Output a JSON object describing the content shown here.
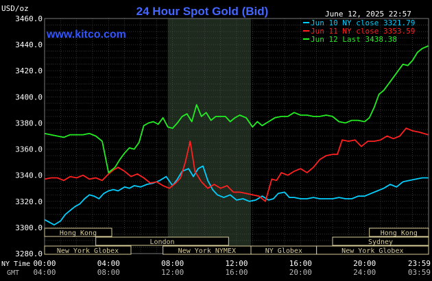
{
  "chart_data": {
    "type": "line",
    "title": "24 Hour Spot Gold (Bid)",
    "website": "www.kitco.com",
    "timestamp": "June 12, 2025 22:57",
    "ylabel": "USD/oz",
    "ylim": [
      3280,
      3460
    ],
    "yticks": [
      "3460.0",
      "3440.0",
      "3420.0",
      "3400.0",
      "3380.0",
      "3360.0",
      "3340.0",
      "3320.0",
      "3300.0",
      "3280.0"
    ],
    "xlim": [
      0,
      24
    ],
    "xtick_hours": [
      0,
      4,
      8,
      12,
      16,
      20,
      24
    ],
    "xticks_ny": [
      "00:00",
      "04:00",
      "08:00",
      "12:00",
      "16:00",
      "20:00",
      "23:59"
    ],
    "xticks_gmt": [
      "04:00",
      "08:00",
      "12:00",
      "16:00",
      "20:00",
      "24:00",
      "03:59"
    ],
    "xrow_label_ny": "NY Time",
    "xrow_label_gmt": "GMT",
    "grid": true,
    "legend_position": "top-right",
    "highlight_band_hours": [
      7.7,
      12.9
    ],
    "colors": {
      "background": "#000000",
      "grid": "#555555",
      "axis_text": "#ffffff",
      "title": "#4466ff",
      "website": "#3355ff",
      "session_box_fill": "#000000",
      "session_box_border": "#d8cc99",
      "session_text": "#d8cc99",
      "band": "#1f2a1f"
    },
    "series": [
      {
        "name": "Jun 10 NY close 3321.79",
        "color": "#00cfff",
        "x": [
          0,
          0.3,
          0.6,
          1.0,
          1.3,
          1.6,
          1.9,
          2.2,
          2.5,
          2.8,
          3.1,
          3.4,
          3.7,
          4.0,
          4.3,
          4.6,
          5.0,
          5.3,
          5.6,
          6.0,
          6.4,
          6.8,
          7.2,
          7.6,
          8.0,
          8.3,
          8.6,
          9.0,
          9.3,
          9.6,
          9.9,
          10.2,
          10.5,
          10.8,
          11.2,
          11.6,
          12.0,
          12.4,
          12.8,
          13.2,
          13.6,
          14.0,
          14.3,
          14.6,
          15.0,
          15.3,
          15.6,
          16.0,
          16.4,
          16.8,
          17.2,
          17.6,
          18.0,
          18.4,
          18.8,
          19.2,
          19.6,
          20.0,
          20.4,
          20.8,
          21.2,
          21.6,
          22.0,
          22.4,
          22.8,
          23.2,
          23.6,
          23.98
        ],
        "values": [
          3306,
          3304,
          3302,
          3305,
          3310,
          3313,
          3316,
          3318,
          3322,
          3325,
          3324,
          3322,
          3326,
          3328,
          3329,
          3328,
          3331,
          3330,
          3332,
          3331,
          3333,
          3334,
          3336,
          3339,
          3332,
          3337,
          3343,
          3345,
          3339,
          3345,
          3347,
          3336,
          3329,
          3325,
          3323,
          3325,
          3321,
          3322,
          3320,
          3321,
          3324,
          3321,
          3322,
          3326,
          3327,
          3323,
          3323,
          3322,
          3322,
          3323,
          3322,
          3322,
          3322,
          3323,
          3322,
          3322,
          3324,
          3324,
          3326,
          3328,
          3330,
          3333,
          3331,
          3335,
          3336,
          3337,
          3338,
          3338
        ]
      },
      {
        "name": "Jun 11 NY close 3353.59",
        "color": "#ff2020",
        "x": [
          0,
          0.4,
          0.8,
          1.2,
          1.6,
          2.0,
          2.4,
          2.8,
          3.2,
          3.6,
          4.0,
          4.3,
          4.6,
          5.0,
          5.4,
          5.8,
          6.2,
          6.6,
          7.0,
          7.4,
          7.8,
          8.2,
          8.5,
          8.8,
          9.1,
          9.4,
          9.8,
          10.2,
          10.6,
          11.0,
          11.4,
          11.8,
          12.2,
          12.6,
          13.0,
          13.4,
          13.8,
          14.2,
          14.5,
          14.8,
          15.2,
          15.6,
          16.0,
          16.4,
          16.8,
          17.2,
          17.6,
          18.0,
          18.3,
          18.6,
          19.0,
          19.4,
          19.8,
          20.2,
          20.6,
          21.0,
          21.4,
          21.8,
          22.2,
          22.6,
          23.0,
          23.4,
          23.98
        ],
        "values": [
          3337,
          3338,
          3338,
          3336,
          3339,
          3338,
          3340,
          3337,
          3338,
          3336,
          3341,
          3344,
          3346,
          3343,
          3339,
          3341,
          3338,
          3334,
          3335,
          3332,
          3330,
          3334,
          3338,
          3350,
          3366,
          3343,
          3335,
          3330,
          3333,
          3330,
          3332,
          3327,
          3327,
          3326,
          3325,
          3324,
          3320,
          3337,
          3336,
          3342,
          3340,
          3343,
          3345,
          3342,
          3346,
          3352,
          3355,
          3356,
          3356,
          3367,
          3366,
          3367,
          3362,
          3366,
          3366,
          3367,
          3370,
          3368,
          3370,
          3376,
          3374,
          3373,
          3371
        ]
      },
      {
        "name": "Jun 12 Last 3438.38",
        "color": "#22ee22",
        "x": [
          0,
          0.4,
          0.8,
          1.2,
          1.6,
          2.0,
          2.4,
          2.8,
          3.2,
          3.6,
          4.0,
          4.2,
          4.4,
          4.7,
          5.0,
          5.3,
          5.6,
          5.9,
          6.2,
          6.5,
          6.8,
          7.1,
          7.4,
          7.7,
          8.0,
          8.3,
          8.6,
          8.9,
          9.2,
          9.5,
          9.8,
          10.1,
          10.4,
          10.7,
          11.0,
          11.3,
          11.6,
          11.9,
          12.2,
          12.6,
          13.0,
          13.3,
          13.6,
          14.0,
          14.4,
          14.8,
          15.2,
          15.6,
          16.0,
          16.4,
          16.8,
          17.2,
          17.6,
          18.0,
          18.4,
          18.8,
          19.2,
          19.6,
          20.0,
          20.3,
          20.6,
          20.9,
          21.2,
          21.5,
          21.8,
          22.1,
          22.4,
          22.7,
          23.0,
          23.3,
          23.6,
          23.98
        ],
        "values": [
          3372,
          3371,
          3370,
          3369,
          3371,
          3371,
          3371,
          3372,
          3370,
          3366,
          3342,
          3344,
          3346,
          3352,
          3357,
          3361,
          3360,
          3365,
          3378,
          3380,
          3381,
          3379,
          3384,
          3377,
          3376,
          3380,
          3385,
          3387,
          3381,
          3394,
          3385,
          3388,
          3382,
          3385,
          3385,
          3385,
          3381,
          3384,
          3386,
          3384,
          3377,
          3381,
          3378,
          3381,
          3384,
          3385,
          3385,
          3388,
          3386,
          3386,
          3385,
          3385,
          3386,
          3385,
          3381,
          3380,
          3382,
          3382,
          3381,
          3384,
          3392,
          3402,
          3405,
          3410,
          3415,
          3420,
          3425,
          3424,
          3428,
          3434,
          3437,
          3439
        ]
      }
    ],
    "sessions": [
      {
        "label": "Hong Kong",
        "start": 0,
        "end": 4.2,
        "row": 0
      },
      {
        "label": "London",
        "start": 3.2,
        "end": 11.5,
        "row": 1
      },
      {
        "label": "New York Globex",
        "start": 0,
        "end": 5.4,
        "row": 2
      },
      {
        "label": "New York NYMEX",
        "start": 7.4,
        "end": 12.9,
        "row": 2
      },
      {
        "label": "NY Globex",
        "start": 12.9,
        "end": 17.0,
        "row": 2
      },
      {
        "label": "Hong Kong",
        "start": 20.3,
        "end": 24.0,
        "row": 0
      },
      {
        "label": "Sydney",
        "start": 18.0,
        "end": 24.0,
        "row": 1
      },
      {
        "label": "New York Globex",
        "start": 17.0,
        "end": 24.0,
        "row": 2
      }
    ]
  }
}
